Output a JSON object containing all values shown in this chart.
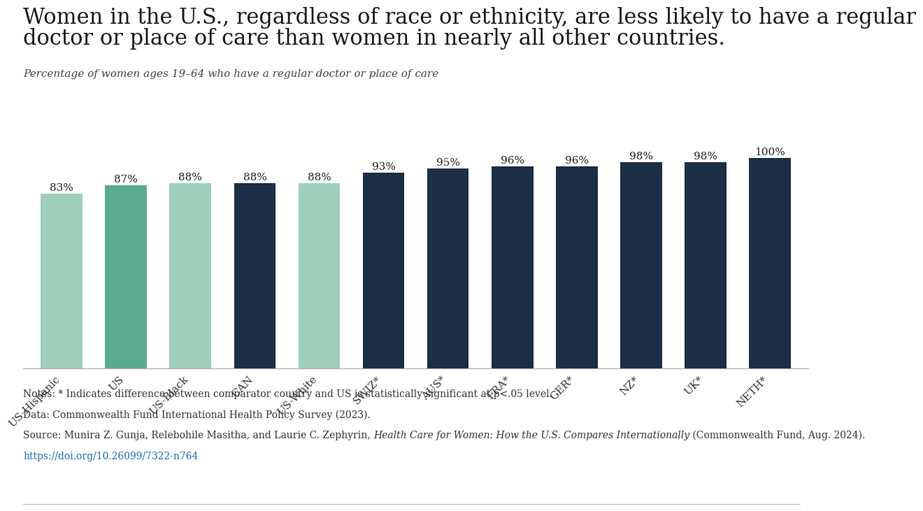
{
  "categories": [
    "US-Hispanic",
    "US",
    "US-Black",
    "CAN",
    "US-White",
    "SWIZ*",
    "AUS*",
    "FRA*",
    "GER*",
    "NZ*",
    "UK*",
    "NETH*"
  ],
  "values": [
    83,
    87,
    88,
    88,
    88,
    93,
    95,
    96,
    96,
    98,
    98,
    100
  ],
  "labels": [
    "83%",
    "87%",
    "88%",
    "88%",
    "88%",
    "93%",
    "95%",
    "96%",
    "96%",
    "98%",
    "98%",
    "100%"
  ],
  "bar_colors": [
    "#9ecfbb",
    "#5aab8f",
    "#9ecfbb",
    "#1b2e45",
    "#9ecfbb",
    "#1b2e45",
    "#1b2e45",
    "#1b2e45",
    "#1b2e45",
    "#1b2e45",
    "#1b2e45",
    "#1b2e45"
  ],
  "title_line1": "Women in the U.S., regardless of race or ethnicity, are less likely to have a regular",
  "title_line2": "doctor or place of care than women in nearly all other countries.",
  "subtitle": "Percentage of women ages 19–64 who have a regular doctor or place of care",
  "note1": "Notes: * Indicates difference between comparator country and US is statistically significant at p<.05 level.",
  "note2": "Data: Commonwealth Fund International Health Policy Survey (2023).",
  "note3_plain": "Source: Munira Z. Gunja, Relebohile Masitha, and Laurie C. Zephyrin, ",
  "note3_italic": "Health Care for Women: How the U.S. Compares Internationally",
  "note3_end": " (Commonwealth Fund, Aug. 2024).",
  "doi": "https://doi.org/10.26099/7322-n764",
  "background_color": "#ffffff",
  "ylim_max": 107,
  "title_fontsize": 22,
  "subtitle_fontsize": 11,
  "note_fontsize": 10,
  "label_fontsize": 11,
  "tick_fontsize": 11
}
